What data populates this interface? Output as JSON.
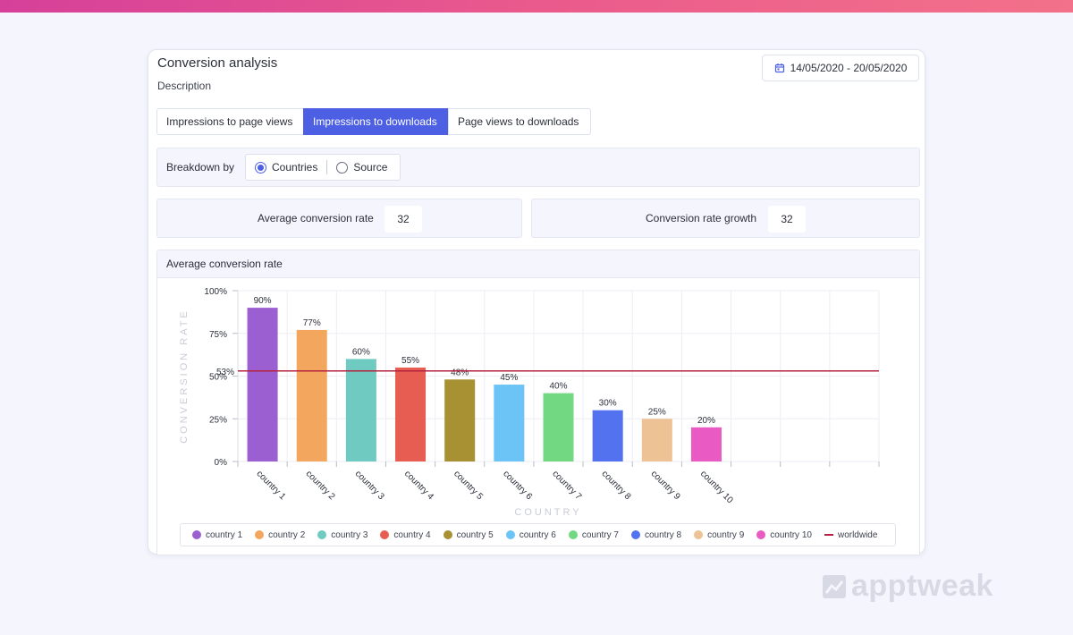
{
  "header": {
    "title": "Conversion analysis",
    "description": "Description",
    "date_range": "14/05/2020 - 20/05/2020"
  },
  "tabs": [
    {
      "label": "Impressions to page views",
      "active": false
    },
    {
      "label": "Impressions to downloads",
      "active": true
    },
    {
      "label": "Page views to downloads",
      "active": false
    }
  ],
  "breakdown": {
    "label": "Breakdown by",
    "options": [
      {
        "label": "Countries",
        "checked": true
      },
      {
        "label": "Source",
        "checked": false
      }
    ]
  },
  "metrics": {
    "average": {
      "label": "Average conversion rate",
      "value": "32"
    },
    "growth": {
      "label": "Conversion rate growth",
      "value": "32"
    }
  },
  "chart_panel": {
    "title": "Average conversion rate"
  },
  "chart_data": {
    "type": "bar",
    "xlabel": "COUNTRY",
    "ylabel": "CONVERSION RATE",
    "ylim": [
      0,
      100
    ],
    "y_ticks": [
      "0%",
      "25%",
      "50%",
      "75%",
      "100%"
    ],
    "categories": [
      "country 1",
      "country 2",
      "country 3",
      "country 4",
      "country 5",
      "country 6",
      "country 7",
      "country 8",
      "country 9",
      "country 10"
    ],
    "values": [
      90,
      77,
      60,
      55,
      48,
      45,
      40,
      30,
      25,
      20
    ],
    "value_labels": [
      "90%",
      "77%",
      "60%",
      "55%",
      "48%",
      "45%",
      "40%",
      "30%",
      "25%",
      "20%"
    ],
    "colors": [
      "#9b5fd1",
      "#f2a65e",
      "#6fcac2",
      "#e85d52",
      "#a89133",
      "#6cc4f6",
      "#72d982",
      "#5272ef",
      "#edc295",
      "#e95ac3"
    ],
    "empty_slots": 3,
    "reference_line": {
      "name": "worldwide",
      "value": 53,
      "label": "53%",
      "color": "#b5223f"
    },
    "grid": true,
    "legend_position": "bottom"
  },
  "branding": {
    "watermark": "apptweak"
  }
}
